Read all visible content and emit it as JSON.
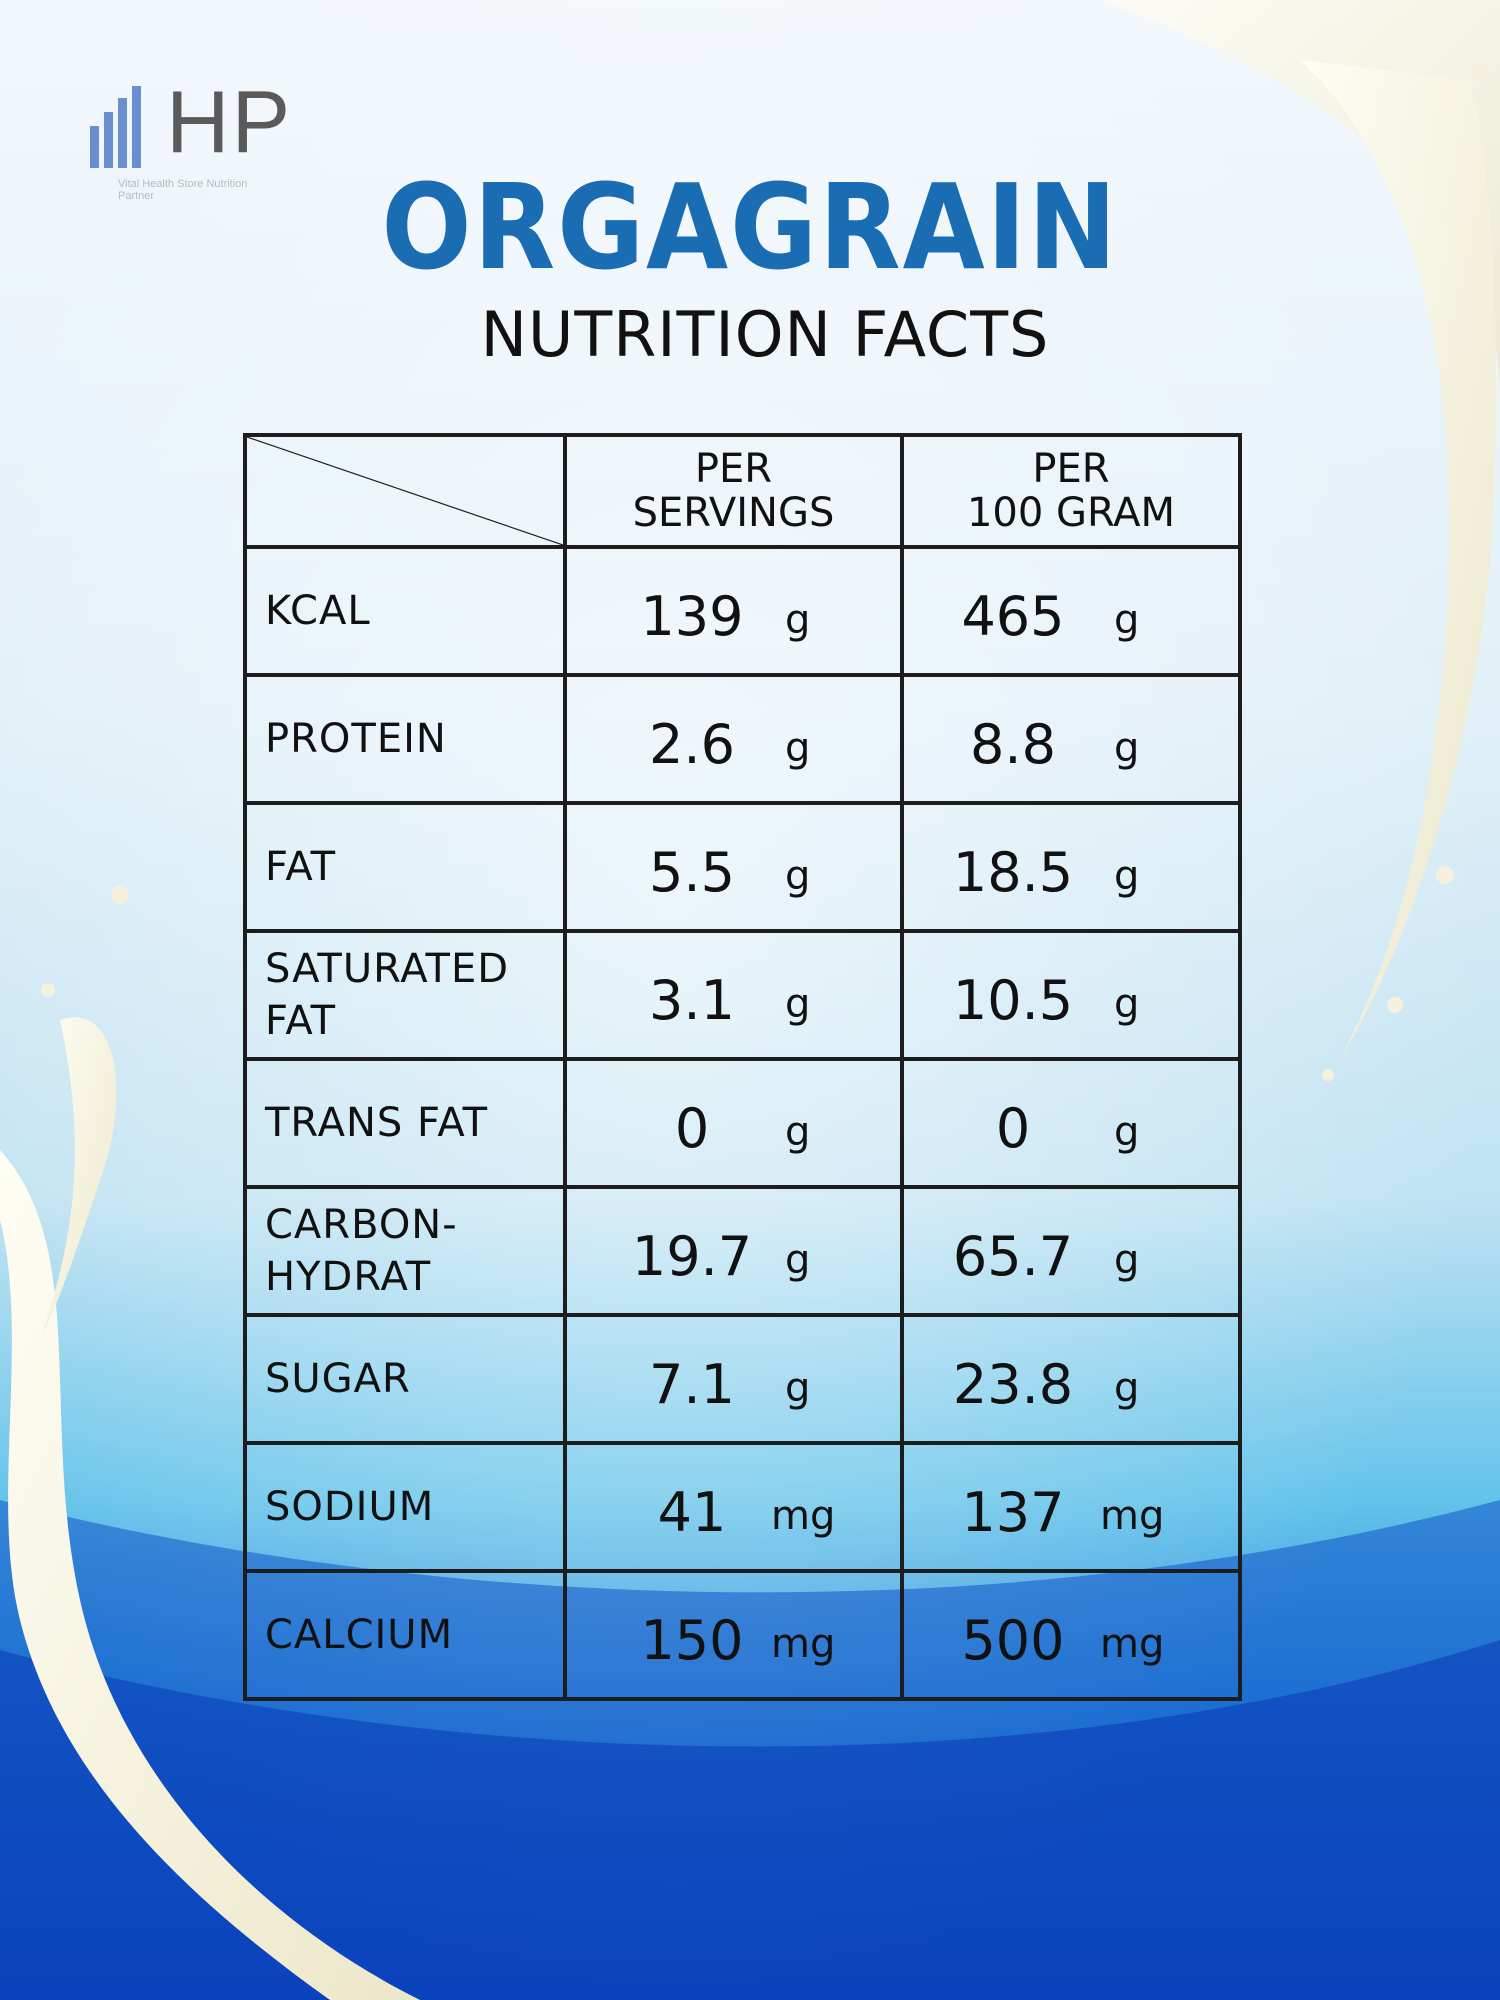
{
  "brand": {
    "logo_text": "HP",
    "logo_tagline": "Vital Health Store Nutrition Partner"
  },
  "title": "ORGAGRAIN",
  "subtitle": "NUTRITION FACTS",
  "colors": {
    "title_blue": "#1a6cb3",
    "logo_bar_blue": "#6a8fd0",
    "background_top": "#f3f8fc",
    "background_bottom": "#0a49c2"
  },
  "table": {
    "headers": [
      "PER SERVINGS",
      "PER 100 GRAM"
    ],
    "header_lines": [
      [
        "PER",
        "SERVINGS"
      ],
      [
        "PER",
        "100 GRAM"
      ]
    ],
    "rows": [
      {
        "label": [
          "KCAL"
        ],
        "serving": "139",
        "serving_unit": "g",
        "per100": "465",
        "per100_unit": "g"
      },
      {
        "label": [
          "PROTEIN"
        ],
        "serving": "2.6",
        "serving_unit": "g",
        "per100": "8.8",
        "per100_unit": "g"
      },
      {
        "label": [
          "FAT"
        ],
        "serving": "5.5",
        "serving_unit": "g",
        "per100": "18.5",
        "per100_unit": "g"
      },
      {
        "label": [
          "SATURATED",
          "FAT"
        ],
        "serving": "3.1",
        "serving_unit": "g",
        "per100": "10.5",
        "per100_unit": "g"
      },
      {
        "label": [
          "TRANS FAT"
        ],
        "serving": "0",
        "serving_unit": "g",
        "per100": "0",
        "per100_unit": "g"
      },
      {
        "label": [
          "CARBON-",
          "HYDRAT"
        ],
        "serving": "19.7",
        "serving_unit": "g",
        "per100": "65.7",
        "per100_unit": "g"
      },
      {
        "label": [
          "SUGAR"
        ],
        "serving": "7.1",
        "serving_unit": "g",
        "per100": "23.8",
        "per100_unit": "g"
      },
      {
        "label": [
          "SODIUM"
        ],
        "serving": "41",
        "serving_unit": "mg",
        "per100": "137",
        "per100_unit": "mg"
      },
      {
        "label": [
          "CALCIUM"
        ],
        "serving": "150",
        "serving_unit": "mg",
        "per100": "500",
        "per100_unit": "mg"
      }
    ]
  }
}
